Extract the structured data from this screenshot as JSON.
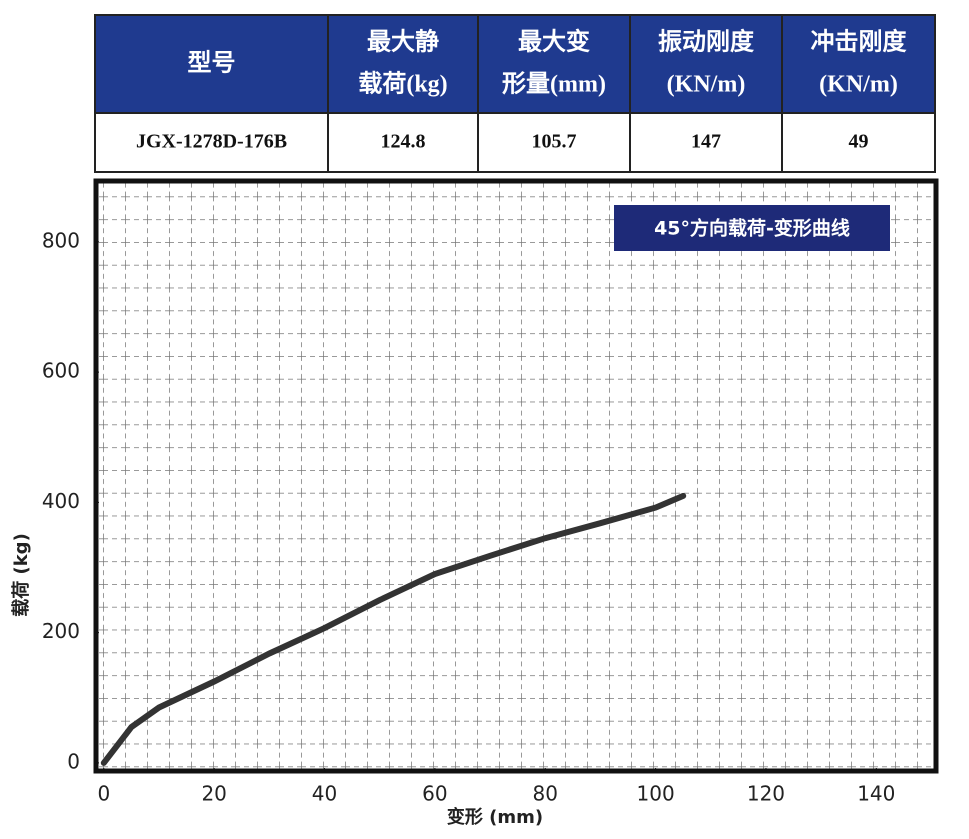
{
  "table": {
    "header": [
      [
        "型号"
      ],
      [
        "最大静",
        "载荷(kg)"
      ],
      [
        "最大变",
        "形量(mm)"
      ],
      [
        "振动刚度",
        "(KN/m)"
      ],
      [
        "冲击刚度",
        "(KN/m)"
      ]
    ],
    "rows": [
      [
        "JGX-1278D-176B",
        "124.8",
        "105.7",
        "147",
        "49"
      ]
    ]
  },
  "chart_data": {
    "type": "line",
    "title": "45°方向载荷-变形曲线",
    "x_label": "变形 (mm)",
    "y_label": "载荷 (kg)",
    "series": [
      {
        "color": "#333333",
        "x": [
          0,
          5,
          10,
          20,
          30,
          40,
          50,
          60,
          70,
          80,
          90,
          100,
          105
        ],
        "values": [
          0,
          55,
          85,
          125,
          168,
          207,
          250,
          290,
          318,
          345,
          368,
          392,
          410
        ]
      }
    ],
    "xlim": [
      -1.6,
      151
    ],
    "ylim": [
      -14,
      895
    ],
    "xticks": [
      0,
      20,
      40,
      60,
      80,
      100,
      120,
      140
    ],
    "yticks": [
      0,
      200,
      400,
      600,
      800
    ],
    "grid": true
  }
}
